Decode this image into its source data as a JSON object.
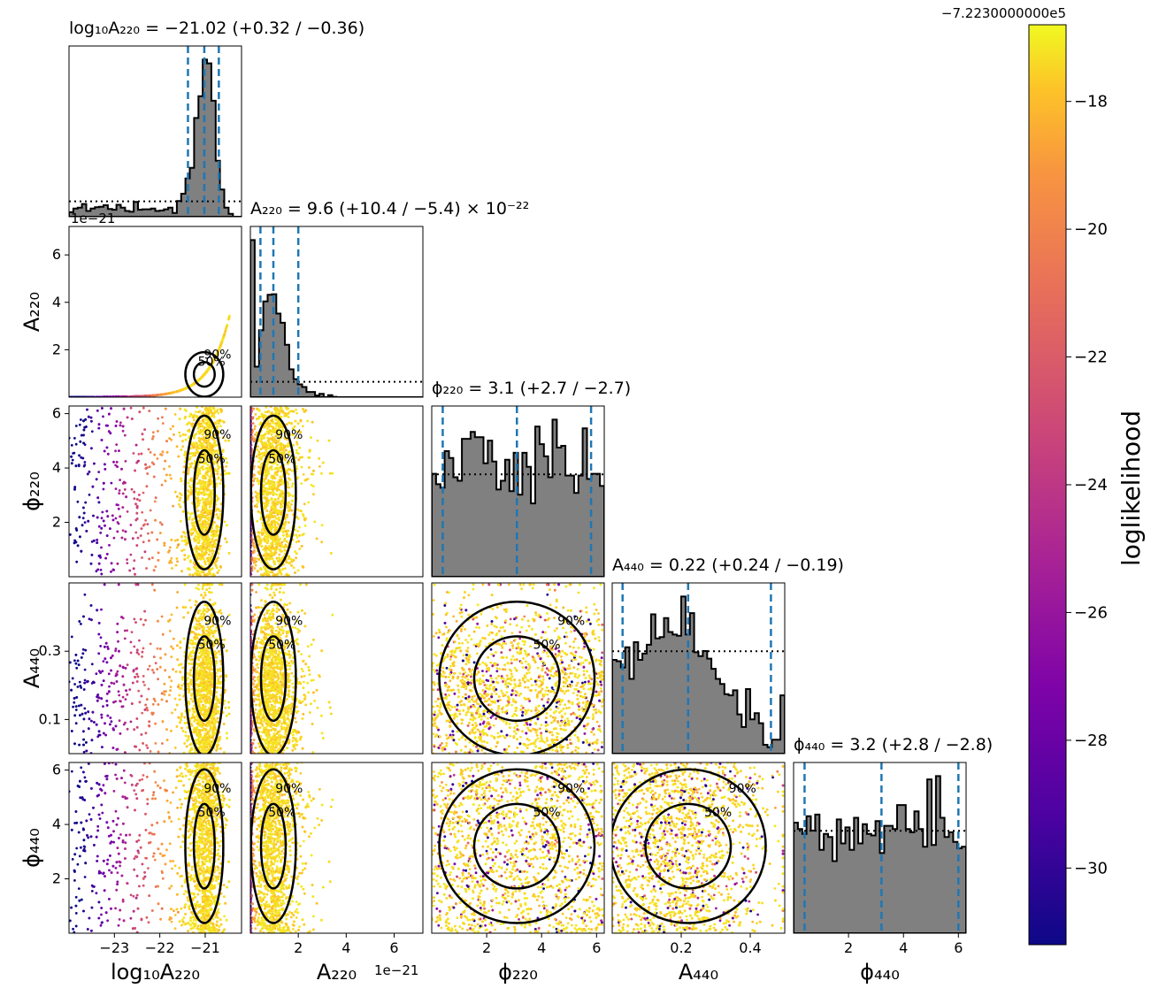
{
  "figure": {
    "colorbar": {
      "label": "loglikelihood",
      "offset_label": "−7.2230000000e5",
      "ticks": [
        -30,
        -28,
        -26,
        -24,
        -22,
        -20,
        -18
      ],
      "tick_labels": [
        "−30",
        "−28",
        "−26",
        "−24",
        "−22",
        "−20",
        "−18"
      ],
      "range": [
        -31.2,
        -16.8
      ],
      "colormap": "plasma"
    },
    "scale_labels": {
      "a220_row_offset": "1e−21",
      "a220_col_offset": "1e−21"
    }
  },
  "chart_data": {
    "type": "corner",
    "parameters": [
      {
        "key": "log10A220",
        "axis_label": "log₁₀A₂₂₀",
        "title": "log₁₀A₂₂₀ = −21.02 (+0.32 / −0.36)",
        "median": -21.02,
        "lower": -21.38,
        "upper": -20.7,
        "range": [
          -24.0,
          -20.2
        ],
        "ticks": [
          -23,
          -22,
          -21
        ],
        "tick_labels": [
          "−23",
          "−22",
          "−21"
        ]
      },
      {
        "key": "A220",
        "axis_label": "A₂₂₀",
        "title": "A₂₂₀ = 9.6 (+10.4 / −5.4) × 10⁻²²",
        "median": 0.96,
        "lower": 0.42,
        "upper": 2.0,
        "range": [
          0,
          7.2
        ],
        "ticks": [
          2,
          4,
          6
        ],
        "tick_labels": [
          "2",
          "4",
          "6"
        ]
      },
      {
        "key": "phi220",
        "axis_label": "ϕ₂₂₀",
        "title": "ϕ₂₂₀ = 3.1 (+2.7 / −2.7)",
        "median": 3.1,
        "lower": 0.4,
        "upper": 5.8,
        "range": [
          0,
          6.28
        ],
        "ticks": [
          2,
          4,
          6
        ],
        "tick_labels": [
          "2",
          "4",
          "6"
        ]
      },
      {
        "key": "A440",
        "axis_label": "A₄₄₀",
        "title": "A₄₄₀ = 0.22 (+0.24 / −0.19)",
        "median": 0.22,
        "lower": 0.03,
        "upper": 0.46,
        "range": [
          0,
          0.5
        ],
        "ticks": [
          0.1,
          0.3
        ],
        "tick_labels": [
          "0.1",
          "0.3"
        ],
        "x_ticks": [
          0.2,
          0.4
        ],
        "x_tick_labels": [
          "0.2",
          "0.4"
        ]
      },
      {
        "key": "phi440",
        "axis_label": "ϕ₄₄₀",
        "title": "ϕ₄₄₀ = 3.2 (+2.8 / −2.8)",
        "median": 3.2,
        "lower": 0.4,
        "upper": 6.0,
        "range": [
          0,
          6.28
        ],
        "ticks": [
          2,
          4,
          6
        ],
        "tick_labels": [
          "2",
          "4",
          "6"
        ]
      }
    ],
    "contour_levels": [
      "50%",
      "90%"
    ],
    "colors": {
      "histogram_fill": "#808080",
      "quantile_lines": "#1f77b4",
      "contours": "#000000"
    }
  }
}
